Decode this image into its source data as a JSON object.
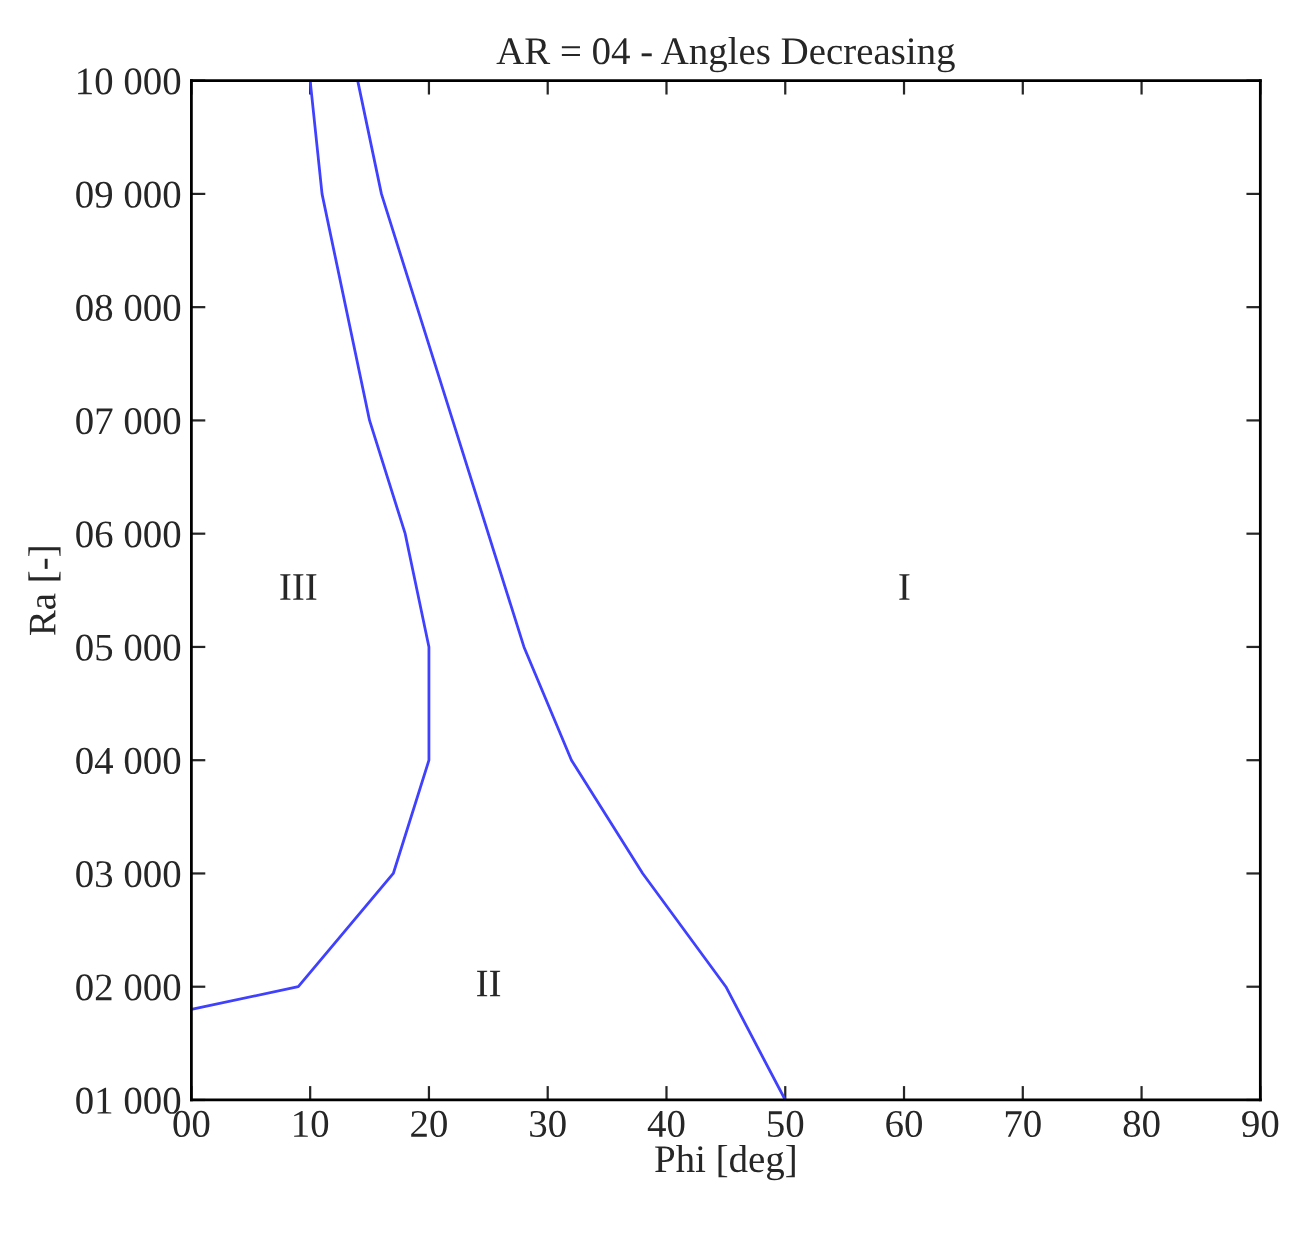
{
  "chart_data": {
    "type": "line",
    "title": "AR = 04 - Angles Decreasing",
    "xlabel": "Phi [deg]",
    "ylabel": "Ra [-]",
    "series": [
      {
        "color": "#4040ff",
        "x": [
          0,
          9,
          17,
          20,
          20,
          18,
          15,
          11,
          10
        ],
        "values": [
          1800,
          2000,
          3000,
          4000,
          5000,
          6000,
          7000,
          9000,
          10000
        ]
      },
      {
        "color": "#4040ff",
        "x": [
          14,
          16,
          19,
          22,
          28,
          32,
          38,
          45,
          50
        ],
        "values": [
          10000,
          9000,
          8000,
          7000,
          5000,
          4000,
          3000,
          2000,
          1000
        ]
      }
    ],
    "xlim": [
      0,
      90
    ],
    "ylim": [
      1000,
      10000
    ],
    "xticks": [
      {
        "value": 0,
        "label": "00"
      },
      10,
      20,
      30,
      40,
      50,
      60,
      70,
      80,
      90
    ],
    "yticks": [
      {
        "value": 1000,
        "label": "01 000"
      },
      {
        "value": 2000,
        "label": "02 000"
      },
      {
        "value": 3000,
        "label": "03 000"
      },
      {
        "value": 4000,
        "label": "04 000"
      },
      {
        "value": 5000,
        "label": "05 000"
      },
      {
        "value": 6000,
        "label": "06 000"
      },
      {
        "value": 7000,
        "label": "07 000"
      },
      {
        "value": 8000,
        "label": "08 000"
      },
      {
        "value": 9000,
        "label": "09 000"
      },
      {
        "value": 10000,
        "label": "10 000"
      }
    ],
    "annotations": [
      "III",
      "II",
      "I"
    ],
    "grid": false,
    "legend": false,
    "marker": "none",
    "line_style": "solid"
  }
}
